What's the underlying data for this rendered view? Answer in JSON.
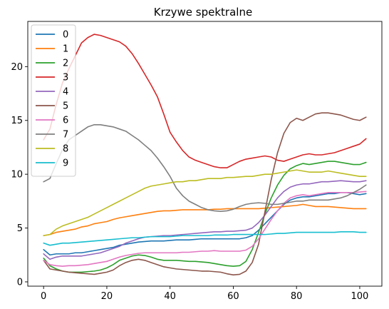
{
  "chart_data": {
    "type": "line",
    "title": "Krzywe spektralne",
    "xlabel": "",
    "ylabel": "",
    "xlim": [
      -5,
      107
    ],
    "ylim": [
      -0.4,
      24.2
    ],
    "xticks": [
      0,
      20,
      40,
      60,
      80,
      100
    ],
    "yticks": [
      0,
      5,
      10,
      15,
      20
    ],
    "grid": false,
    "legend_position": "top-left",
    "x": [
      0,
      2,
      4,
      6,
      8,
      10,
      12,
      14,
      16,
      18,
      20,
      22,
      24,
      26,
      28,
      30,
      32,
      34,
      36,
      38,
      40,
      42,
      44,
      46,
      48,
      50,
      52,
      54,
      56,
      58,
      60,
      62,
      64,
      66,
      68,
      70,
      72,
      74,
      76,
      78,
      80,
      82,
      84,
      86,
      88,
      90,
      92,
      94,
      96,
      98,
      100,
      102
    ],
    "series": [
      {
        "name": "0",
        "color": "#1f77b4",
        "values": [
          3.0,
          2.5,
          2.6,
          2.6,
          2.6,
          2.7,
          2.7,
          2.8,
          2.9,
          3.0,
          3.1,
          3.2,
          3.4,
          3.5,
          3.6,
          3.7,
          3.75,
          3.8,
          3.8,
          3.8,
          3.85,
          3.9,
          3.9,
          3.9,
          3.95,
          4.0,
          4.0,
          4.0,
          4.0,
          4.0,
          4.0,
          4.0,
          4.1,
          4.3,
          4.8,
          5.4,
          6.0,
          6.6,
          7.2,
          7.6,
          7.8,
          7.9,
          7.9,
          8.0,
          8.1,
          8.2,
          8.2,
          8.3,
          8.3,
          8.2,
          8.1,
          8.2
        ]
      },
      {
        "name": "1",
        "color": "#ff7f0e",
        "values": [
          4.3,
          4.4,
          4.6,
          4.7,
          4.8,
          4.9,
          5.1,
          5.2,
          5.4,
          5.5,
          5.6,
          5.8,
          5.95,
          6.05,
          6.15,
          6.25,
          6.35,
          6.45,
          6.55,
          6.6,
          6.6,
          6.65,
          6.7,
          6.7,
          6.7,
          6.7,
          6.7,
          6.75,
          6.75,
          6.8,
          6.8,
          6.8,
          6.8,
          6.8,
          6.8,
          6.85,
          6.9,
          6.95,
          7.0,
          7.05,
          7.1,
          7.2,
          7.1,
          7.0,
          7.0,
          7.0,
          6.95,
          6.9,
          6.85,
          6.8,
          6.8,
          6.8
        ]
      },
      {
        "name": "2",
        "color": "#2ca02c",
        "values": [
          2.2,
          1.5,
          1.2,
          1.0,
          0.9,
          0.9,
          0.9,
          0.95,
          1.0,
          1.1,
          1.3,
          1.6,
          2.0,
          2.2,
          2.4,
          2.5,
          2.45,
          2.3,
          2.1,
          2.0,
          2.0,
          2.0,
          1.95,
          1.9,
          1.9,
          1.85,
          1.8,
          1.7,
          1.6,
          1.5,
          1.45,
          1.5,
          1.9,
          3.0,
          4.6,
          6.3,
          7.8,
          9.0,
          9.9,
          10.5,
          10.8,
          11.0,
          10.9,
          11.0,
          11.1,
          11.2,
          11.2,
          11.1,
          11.0,
          10.9,
          10.9,
          11.1
        ]
      },
      {
        "name": "3",
        "color": "#d62728",
        "values": [
          13.2,
          14.2,
          16.5,
          18.5,
          19.8,
          21.0,
          22.2,
          22.7,
          23.0,
          22.9,
          22.7,
          22.5,
          22.3,
          21.9,
          21.2,
          20.3,
          19.3,
          18.3,
          17.2,
          15.6,
          13.9,
          13.0,
          12.2,
          11.6,
          11.3,
          11.1,
          10.9,
          10.7,
          10.6,
          10.6,
          10.9,
          11.2,
          11.4,
          11.5,
          11.6,
          11.7,
          11.6,
          11.3,
          11.2,
          11.4,
          11.6,
          11.8,
          11.9,
          11.8,
          11.8,
          11.9,
          12.0,
          12.2,
          12.4,
          12.6,
          12.8,
          13.3
        ]
      },
      {
        "name": "4",
        "color": "#9467bd",
        "values": [
          2.6,
          2.1,
          2.3,
          2.4,
          2.4,
          2.4,
          2.4,
          2.5,
          2.6,
          2.7,
          2.9,
          3.1,
          3.3,
          3.6,
          3.8,
          4.0,
          4.15,
          4.2,
          4.25,
          4.3,
          4.3,
          4.35,
          4.4,
          4.45,
          4.5,
          4.55,
          4.6,
          4.65,
          4.65,
          4.7,
          4.7,
          4.75,
          4.8,
          5.0,
          5.5,
          6.2,
          7.0,
          7.8,
          8.4,
          8.8,
          9.0,
          9.1,
          9.1,
          9.2,
          9.3,
          9.3,
          9.35,
          9.4,
          9.35,
          9.3,
          9.3,
          9.4
        ]
      },
      {
        "name": "5",
        "color": "#8c564b",
        "values": [
          2.0,
          1.2,
          1.1,
          1.0,
          0.9,
          0.85,
          0.8,
          0.75,
          0.7,
          0.8,
          0.9,
          1.1,
          1.5,
          1.8,
          2.0,
          2.1,
          2.0,
          1.8,
          1.6,
          1.4,
          1.3,
          1.2,
          1.15,
          1.1,
          1.05,
          1.0,
          1.0,
          0.95,
          0.9,
          0.75,
          0.65,
          0.7,
          1.0,
          1.8,
          3.5,
          6.5,
          9.5,
          12.0,
          13.8,
          14.8,
          15.2,
          15.0,
          15.3,
          15.6,
          15.7,
          15.7,
          15.6,
          15.5,
          15.3,
          15.1,
          15.0,
          15.3
        ]
      },
      {
        "name": "6",
        "color": "#e377c2",
        "values": [
          2.0,
          1.6,
          1.5,
          1.45,
          1.5,
          1.5,
          1.55,
          1.6,
          1.7,
          1.8,
          1.9,
          2.1,
          2.3,
          2.45,
          2.55,
          2.65,
          2.7,
          2.7,
          2.7,
          2.7,
          2.7,
          2.7,
          2.75,
          2.75,
          2.8,
          2.85,
          2.85,
          2.9,
          2.85,
          2.85,
          2.85,
          2.85,
          2.95,
          3.3,
          4.0,
          4.9,
          5.8,
          6.6,
          7.3,
          7.8,
          8.0,
          8.1,
          8.0,
          8.1,
          8.2,
          8.3,
          8.3,
          8.3,
          8.3,
          8.3,
          8.35,
          8.4
        ]
      },
      {
        "name": "7",
        "color": "#7f7f7f",
        "values": [
          9.3,
          9.6,
          11.0,
          12.3,
          13.2,
          13.6,
          14.0,
          14.4,
          14.6,
          14.6,
          14.5,
          14.4,
          14.2,
          14.0,
          13.6,
          13.2,
          12.7,
          12.2,
          11.5,
          10.7,
          9.8,
          8.7,
          8.0,
          7.5,
          7.2,
          6.9,
          6.7,
          6.6,
          6.55,
          6.6,
          6.75,
          7.0,
          7.2,
          7.3,
          7.35,
          7.3,
          7.2,
          7.2,
          7.3,
          7.4,
          7.5,
          7.5,
          7.6,
          7.6,
          7.6,
          7.6,
          7.7,
          7.8,
          8.0,
          8.3,
          8.6,
          9.0
        ]
      },
      {
        "name": "8",
        "color": "#bcbd22",
        "values": [
          4.3,
          4.4,
          4.9,
          5.2,
          5.4,
          5.6,
          5.8,
          6.0,
          6.3,
          6.6,
          6.9,
          7.2,
          7.5,
          7.8,
          8.1,
          8.4,
          8.7,
          8.9,
          9.0,
          9.1,
          9.2,
          9.3,
          9.3,
          9.4,
          9.4,
          9.5,
          9.6,
          9.6,
          9.6,
          9.7,
          9.7,
          9.75,
          9.8,
          9.8,
          9.9,
          10.0,
          10.0,
          10.1,
          10.2,
          10.3,
          10.4,
          10.3,
          10.2,
          10.2,
          10.2,
          10.3,
          10.2,
          10.1,
          10.0,
          9.9,
          9.8,
          9.8
        ]
      },
      {
        "name": "9",
        "color": "#17becf",
        "values": [
          3.6,
          3.4,
          3.5,
          3.6,
          3.6,
          3.65,
          3.7,
          3.75,
          3.8,
          3.85,
          3.9,
          3.95,
          4.0,
          4.05,
          4.1,
          4.1,
          4.15,
          4.2,
          4.2,
          4.2,
          4.2,
          4.25,
          4.3,
          4.3,
          4.3,
          4.3,
          4.3,
          4.35,
          4.35,
          4.35,
          4.4,
          4.4,
          4.4,
          4.4,
          4.4,
          4.4,
          4.45,
          4.5,
          4.5,
          4.55,
          4.6,
          4.6,
          4.6,
          4.6,
          4.6,
          4.6,
          4.6,
          4.65,
          4.65,
          4.65,
          4.6,
          4.6
        ]
      }
    ]
  }
}
